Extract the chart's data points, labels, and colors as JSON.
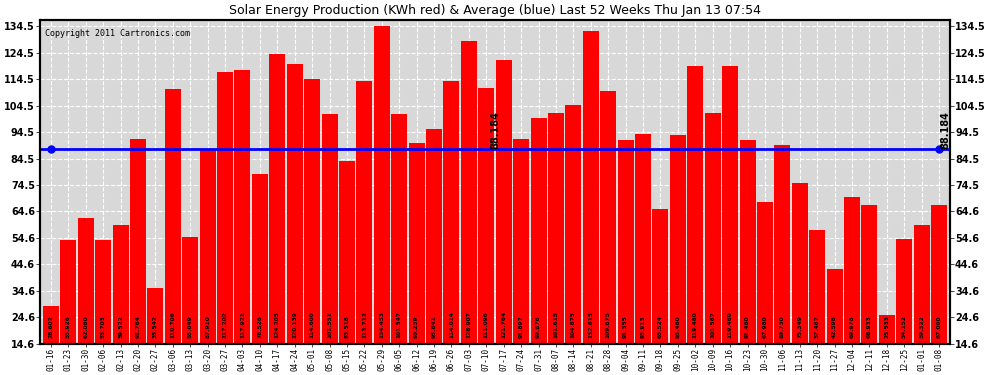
{
  "title": "Solar Energy Production (KWh red) & Average (blue) Last 52 Weeks Thu Jan 13 07:54",
  "copyright": "Copyright 2011 Cartronics.com",
  "average": 88.184,
  "bar_color": "#FF0000",
  "avg_line_color": "#0000FF",
  "background_color": "#FFFFFF",
  "plot_bg_color": "#D8D8D8",
  "ylim": [
    14.6,
    137.0
  ],
  "ymin": 14.6,
  "yticks": [
    14.6,
    24.6,
    34.6,
    44.6,
    54.6,
    64.6,
    74.5,
    84.5,
    94.5,
    104.5,
    114.5,
    124.5,
    134.5
  ],
  "grid_color": "#FFFFFF",
  "categories": [
    "01-16",
    "01-23",
    "01-30",
    "02-06",
    "02-13",
    "02-20",
    "02-27",
    "03-06",
    "03-13",
    "03-20",
    "03-27",
    "04-03",
    "04-10",
    "04-17",
    "04-24",
    "05-01",
    "05-08",
    "05-15",
    "05-22",
    "05-29",
    "06-05",
    "06-12",
    "06-19",
    "06-26",
    "07-03",
    "07-10",
    "07-17",
    "07-24",
    "07-31",
    "08-07",
    "08-14",
    "08-21",
    "08-28",
    "09-04",
    "09-11",
    "09-18",
    "09-25",
    "10-02",
    "10-09",
    "10-16",
    "10-23",
    "10-30",
    "11-06",
    "11-13",
    "11-20",
    "11-27",
    "12-04",
    "12-11",
    "12-18",
    "12-25",
    "01-01",
    "01-08"
  ],
  "values": [
    28.602,
    53.926,
    62.08,
    53.703,
    59.522,
    91.764,
    35.542,
    110.706,
    55.049,
    87.91,
    117.202,
    117.921,
    78.526,
    124.205,
    120.139,
    114.6,
    101.551,
    83.518,
    113.712,
    134.453,
    101.347,
    90.239,
    95.841,
    114.014,
    128.907,
    111.096,
    121.764,
    91.897,
    99.876,
    101.615,
    104.875,
    132.615,
    109.875,
    91.355,
    93.913,
    65.524,
    93.46,
    119.46,
    101.567,
    119.46,
    91.46,
    67.98,
    89.73,
    75.349,
    57.467,
    42.598,
    69.978,
    66.933,
    25.533,
    54.152,
    59.322,
    67.09
  ]
}
